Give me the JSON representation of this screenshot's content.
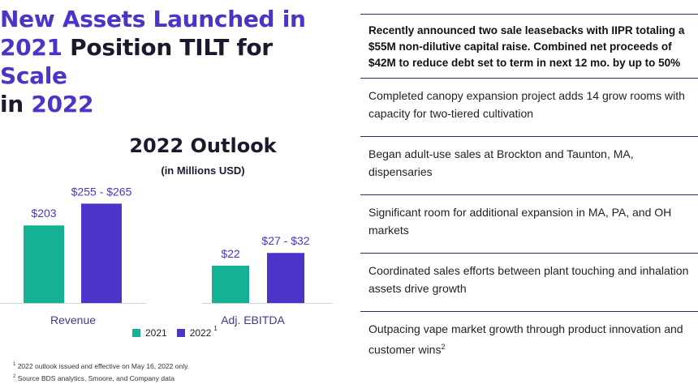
{
  "headline": {
    "line1_accent": "New Assets Launched in",
    "line2_accent": "2021",
    "line2_text": " Position TILT for ",
    "line2_accent2": "Scale",
    "line3_text": "in ",
    "line3_accent": "2022"
  },
  "outlook": {
    "title": "2022 Outlook",
    "subtitle": "(in Millions USD)"
  },
  "chart_data": {
    "type": "bar",
    "title": "2022 Outlook",
    "subtitle": "(in Millions USD)",
    "categories": [
      "Revenue",
      "Adj. EBITDA"
    ],
    "series": [
      {
        "name": "2021",
        "values": [
          203,
          22
        ],
        "labels": [
          "$203",
          "$22"
        ],
        "color": "#14b195"
      },
      {
        "name": "2022",
        "values": [
          260,
          29.5
        ],
        "labels": [
          "$255 - $265",
          "$27 - $32"
        ],
        "color": "#4b35c8"
      }
    ],
    "legend_position": "bottom",
    "grid": false
  },
  "legend": {
    "items": [
      {
        "label": "2021",
        "color": "#14b195"
      },
      {
        "label": "2022",
        "color": "#4b35c8",
        "sup": "1"
      }
    ]
  },
  "footnotes": {
    "note1_sup": "1",
    "note1": " 2022 outlook issued and effective on May 16, 2022 only.",
    "note2_sup": "2",
    "note2": " Source BDS analytics, Smoore, and Company data"
  },
  "bullets": [
    {
      "text": "Recently announced two sale leasebacks with IIPR totaling a $55M non-dilutive capital raise.  Combined net proceeds of $42M to reduce debt set to term in next 12 mo. by up to 50%",
      "bold": true
    },
    {
      "text": "Completed canopy expansion project adds 14 grow rooms with capacity for two-tiered cultivation",
      "bold": false
    },
    {
      "text": "Began adult-use sales at Brockton and Taunton, MA, dispensaries",
      "bold": false
    },
    {
      "text": "Significant room for additional expansion in MA, PA, and OH markets",
      "bold": false
    },
    {
      "text": "Coordinated sales efforts between plant touching and inhalation assets drive growth",
      "bold": false
    },
    {
      "text": "Outpacing vape market growth through product innovation and customer wins",
      "bold": false,
      "sup": "2"
    }
  ],
  "colors": {
    "accent": "#4b35c8",
    "teal": "#14b195",
    "rule": "#2e2a7a"
  }
}
